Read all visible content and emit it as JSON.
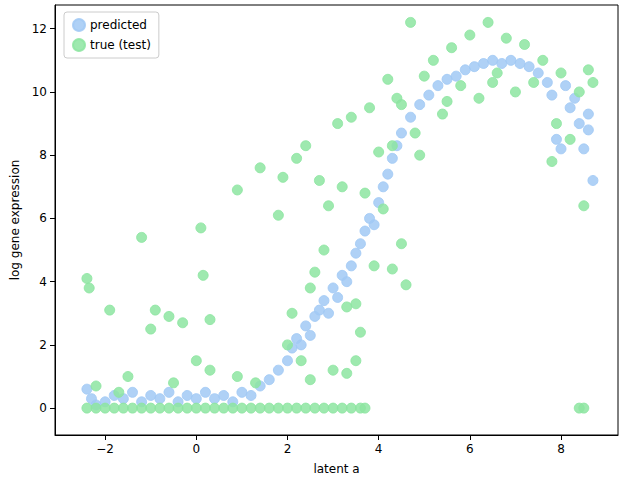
{
  "chart_data": {
    "type": "scatter",
    "x_label": "latent a",
    "y_label": "log gene expression",
    "xlim": [
      -3.1,
      9.25
    ],
    "ylim": [
      -0.85,
      12.75
    ],
    "xticks": [
      {
        "value": -2,
        "label": "−2"
      },
      0,
      2,
      4,
      6,
      8
    ],
    "yticks": [
      0,
      2,
      4,
      6,
      8,
      10,
      12
    ],
    "grid": false,
    "legend": "upper left",
    "series": [
      {
        "name": "predicted",
        "color": "#a1c9f4",
        "marker": "circle",
        "values": [
          [
            -2.4,
            0.6
          ],
          [
            -2.3,
            0.3
          ],
          [
            -2.2,
            0.1
          ],
          [
            -2.0,
            0.2
          ],
          [
            -1.8,
            0.4
          ],
          [
            -1.6,
            0.3
          ],
          [
            -1.4,
            0.5
          ],
          [
            -1.2,
            0.2
          ],
          [
            -1.0,
            0.4
          ],
          [
            -0.8,
            0.3
          ],
          [
            -0.6,
            0.5
          ],
          [
            -0.4,
            0.2
          ],
          [
            -0.2,
            0.4
          ],
          [
            0,
            0.3
          ],
          [
            0.2,
            0.5
          ],
          [
            0.4,
            0.3
          ],
          [
            0.6,
            0.4
          ],
          [
            0.8,
            0.2
          ],
          [
            1.0,
            0.5
          ],
          [
            1.2,
            0.4
          ],
          [
            1.4,
            0.7
          ],
          [
            1.6,
            0.9
          ],
          [
            1.8,
            1.2
          ],
          [
            2.0,
            1.5
          ],
          [
            2.1,
            1.9
          ],
          [
            2.2,
            2.2
          ],
          [
            2.3,
            2.0
          ],
          [
            2.4,
            2.6
          ],
          [
            2.5,
            2.3
          ],
          [
            2.6,
            2.9
          ],
          [
            2.7,
            3.1
          ],
          [
            2.8,
            3.4
          ],
          [
            2.9,
            3.0
          ],
          [
            3.0,
            3.8
          ],
          [
            3.1,
            3.5
          ],
          [
            3.2,
            4.2
          ],
          [
            3.3,
            4.0
          ],
          [
            3.4,
            4.5
          ],
          [
            3.5,
            4.9
          ],
          [
            3.6,
            5.2
          ],
          [
            3.7,
            5.6
          ],
          [
            3.8,
            6.0
          ],
          [
            3.9,
            5.8
          ],
          [
            4.0,
            6.5
          ],
          [
            4.1,
            7.0
          ],
          [
            4.2,
            7.4
          ],
          [
            4.3,
            7.9
          ],
          [
            4.4,
            8.3
          ],
          [
            4.5,
            8.7
          ],
          [
            4.7,
            9.2
          ],
          [
            4.9,
            9.6
          ],
          [
            5.1,
            9.9
          ],
          [
            5.3,
            10.2
          ],
          [
            5.5,
            10.4
          ],
          [
            5.7,
            10.5
          ],
          [
            5.9,
            10.7
          ],
          [
            6.1,
            10.8
          ],
          [
            6.3,
            10.9
          ],
          [
            6.5,
            11.0
          ],
          [
            6.7,
            10.9
          ],
          [
            6.9,
            11.0
          ],
          [
            7.1,
            10.9
          ],
          [
            7.3,
            10.8
          ],
          [
            7.5,
            10.6
          ],
          [
            7.7,
            10.3
          ],
          [
            7.8,
            9.9
          ],
          [
            7.9,
            8.5
          ],
          [
            8.0,
            8.2
          ],
          [
            8.1,
            10.2
          ],
          [
            8.2,
            9.5
          ],
          [
            8.3,
            9.8
          ],
          [
            8.4,
            9.0
          ],
          [
            8.5,
            8.2
          ],
          [
            8.6,
            9.3
          ],
          [
            8.7,
            7.2
          ],
          [
            8.6,
            8.8
          ]
        ]
      },
      {
        "name": "true (test)",
        "color": "#8de5a1",
        "marker": "circle",
        "values": [
          [
            -2.4,
            0
          ],
          [
            -2.2,
            0
          ],
          [
            -2.0,
            0
          ],
          [
            -1.8,
            0
          ],
          [
            -1.6,
            0
          ],
          [
            -1.4,
            0
          ],
          [
            -1.2,
            0
          ],
          [
            -1.0,
            0
          ],
          [
            -0.8,
            0
          ],
          [
            -0.6,
            0
          ],
          [
            -0.4,
            0
          ],
          [
            -0.2,
            0
          ],
          [
            0,
            0
          ],
          [
            0.2,
            0
          ],
          [
            0.4,
            0
          ],
          [
            0.6,
            0
          ],
          [
            0.8,
            0
          ],
          [
            1.0,
            0
          ],
          [
            1.2,
            0
          ],
          [
            1.4,
            0
          ],
          [
            1.6,
            0
          ],
          [
            1.8,
            0
          ],
          [
            2.0,
            0
          ],
          [
            2.2,
            0
          ],
          [
            2.4,
            0
          ],
          [
            2.6,
            0
          ],
          [
            2.8,
            0
          ],
          [
            3.0,
            0
          ],
          [
            3.2,
            0
          ],
          [
            3.4,
            0
          ],
          [
            3.6,
            0
          ],
          [
            3.7,
            0
          ],
          [
            8.4,
            0
          ],
          [
            8.5,
            0
          ],
          [
            -2.4,
            4.1
          ],
          [
            -2.35,
            3.8
          ],
          [
            -1.9,
            3.1
          ],
          [
            -1.2,
            5.4
          ],
          [
            -1.0,
            2.5
          ],
          [
            -0.9,
            3.1
          ],
          [
            -0.6,
            2.9
          ],
          [
            -0.3,
            2.7
          ],
          [
            0.1,
            5.7
          ],
          [
            0.15,
            4.2
          ],
          [
            0.3,
            2.8
          ],
          [
            0.9,
            6.9
          ],
          [
            1.4,
            7.6
          ],
          [
            1.8,
            6.1
          ],
          [
            -2.2,
            0.7
          ],
          [
            -1.5,
            1.0
          ],
          [
            -0.5,
            0.8
          ],
          [
            0.3,
            1.2
          ],
          [
            0.9,
            1.0
          ],
          [
            1.3,
            0.8
          ],
          [
            0,
            1.5
          ],
          [
            -1.7,
            0.5
          ],
          [
            1.9,
            7.3
          ],
          [
            2.0,
            2.0
          ],
          [
            2.1,
            3.0
          ],
          [
            2.2,
            7.9
          ],
          [
            2.3,
            1.5
          ],
          [
            2.4,
            8.3
          ],
          [
            2.5,
            3.8
          ],
          [
            2.6,
            4.3
          ],
          [
            2.7,
            7.2
          ],
          [
            2.8,
            5.0
          ],
          [
            2.9,
            6.4
          ],
          [
            3.0,
            1.2
          ],
          [
            3.1,
            9.0
          ],
          [
            3.2,
            7.0
          ],
          [
            3.3,
            3.2
          ],
          [
            3.4,
            9.2
          ],
          [
            3.5,
            1.5
          ],
          [
            3.6,
            2.4
          ],
          [
            3.7,
            6.8
          ],
          [
            3.8,
            9.5
          ],
          [
            3.9,
            4.5
          ],
          [
            4.0,
            8.1
          ],
          [
            4.1,
            6.3
          ],
          [
            4.2,
            10.4
          ],
          [
            4.3,
            4.4
          ],
          [
            4.4,
            9.8
          ],
          [
            4.5,
            5.2
          ],
          [
            4.6,
            3.9
          ],
          [
            4.7,
            12.2
          ],
          [
            4.8,
            8.7
          ],
          [
            5.0,
            10.5
          ],
          [
            5.2,
            11.0
          ],
          [
            5.4,
            9.3
          ],
          [
            5.6,
            11.4
          ],
          [
            5.8,
            10.2
          ],
          [
            6.0,
            11.8
          ],
          [
            6.2,
            9.8
          ],
          [
            6.4,
            12.2
          ],
          [
            6.6,
            10.6
          ],
          [
            6.8,
            11.7
          ],
          [
            7.0,
            10.0
          ],
          [
            7.2,
            11.5
          ],
          [
            7.4,
            10.3
          ],
          [
            7.6,
            11.0
          ],
          [
            7.8,
            7.8
          ],
          [
            7.9,
            9.0
          ],
          [
            8.0,
            10.6
          ],
          [
            8.2,
            8.5
          ],
          [
            8.4,
            10.0
          ],
          [
            8.6,
            10.7
          ],
          [
            8.7,
            10.3
          ],
          [
            8.5,
            6.4
          ],
          [
            5.5,
            9.7
          ],
          [
            6.5,
            10.3
          ],
          [
            4.3,
            8.3
          ],
          [
            4.9,
            8.0
          ],
          [
            3.5,
            3.3
          ],
          [
            4.5,
            9.6
          ],
          [
            2.5,
            0.9
          ],
          [
            3.3,
            1.1
          ]
        ]
      }
    ]
  }
}
